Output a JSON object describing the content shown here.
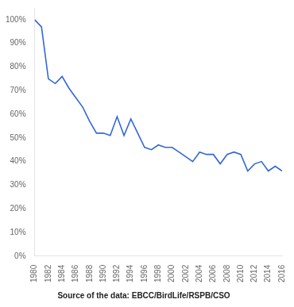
{
  "chart_data": {
    "type": "line",
    "subtitle": "Source of the data: EBCC/BirdLife/RSPB/CSO",
    "x": [
      1980,
      1981,
      1982,
      1983,
      1984,
      1985,
      1986,
      1987,
      1988,
      1989,
      1990,
      1991,
      1992,
      1993,
      1994,
      1995,
      1996,
      1997,
      1998,
      1999,
      2000,
      2001,
      2002,
      2003,
      2004,
      2005,
      2006,
      2007,
      2008,
      2009,
      2010,
      2011,
      2012,
      2013,
      2014,
      2015,
      2016
    ],
    "values": [
      100,
      97,
      75,
      73,
      76,
      71,
      67,
      63,
      57,
      52,
      52,
      51,
      59,
      51,
      58,
      52,
      46,
      45,
      47,
      46,
      46,
      44,
      42,
      40,
      44,
      43,
      43,
      39,
      43,
      44,
      43,
      36,
      39,
      40,
      36,
      38,
      36
    ],
    "color": "#3367d6",
    "xlim": [
      1980,
      2016
    ],
    "xticks": [
      1980,
      1982,
      1984,
      1986,
      1988,
      1990,
      1992,
      1994,
      1996,
      1998,
      2000,
      2002,
      2004,
      2006,
      2008,
      2010,
      2012,
      2014,
      2016
    ],
    "ylim": [
      0,
      105
    ],
    "yticks": [
      {
        "value": 0,
        "label": "0%"
      },
      {
        "value": 10,
        "label": "10%"
      },
      {
        "value": 20,
        "label": "20%"
      },
      {
        "value": 30,
        "label": "30%"
      },
      {
        "value": 40,
        "label": "40%"
      },
      {
        "value": 50,
        "label": "50%"
      },
      {
        "value": 60,
        "label": "60%"
      },
      {
        "value": 70,
        "label": "70%"
      },
      {
        "value": 80,
        "label": "80%"
      },
      {
        "value": 90,
        "label": "90%"
      },
      {
        "value": 100,
        "label": "100%"
      }
    ],
    "grid": false
  }
}
